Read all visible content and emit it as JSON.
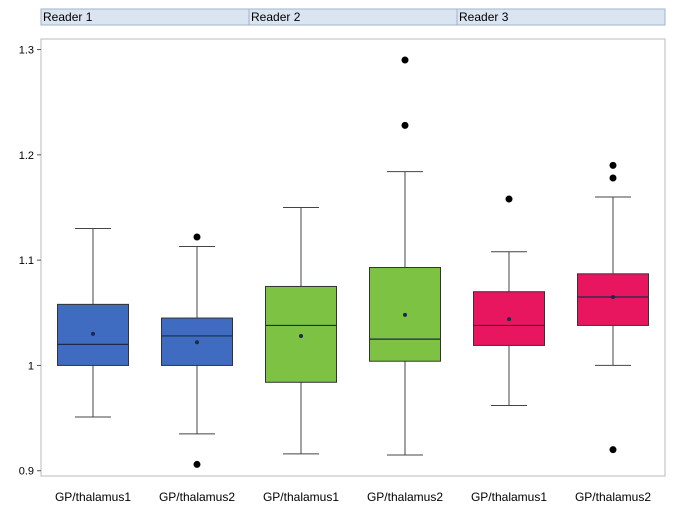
{
  "chart_data": {
    "type": "box",
    "panels": [
      {
        "label": "Reader 1",
        "color": "#3F6CC0",
        "boxes": [
          {
            "category": "GP/thalamus1",
            "whisker_low": 0.951,
            "q1": 1.0,
            "median": 1.02,
            "q3": 1.058,
            "whisker_high": 1.13,
            "mean": 1.03,
            "outliers": []
          },
          {
            "category": "GP/thalamus2",
            "whisker_low": 0.935,
            "q1": 1.0,
            "median": 1.028,
            "q3": 1.045,
            "whisker_high": 1.113,
            "mean": 1.022,
            "outliers": [
              1.122,
              0.906
            ]
          }
        ]
      },
      {
        "label": "Reader 2",
        "color": "#7DC242",
        "boxes": [
          {
            "category": "GP/thalamus1",
            "whisker_low": 0.916,
            "q1": 0.984,
            "median": 1.038,
            "q3": 1.075,
            "whisker_high": 1.15,
            "mean": 1.028,
            "outliers": []
          },
          {
            "category": "GP/thalamus2",
            "whisker_low": 0.915,
            "q1": 1.004,
            "median": 1.025,
            "q3": 1.093,
            "whisker_high": 1.184,
            "mean": 1.048,
            "outliers": [
              1.29,
              1.228
            ]
          }
        ]
      },
      {
        "label": "Reader 3",
        "color": "#E8155F",
        "boxes": [
          {
            "category": "GP/thalamus1",
            "whisker_low": 0.962,
            "q1": 1.019,
            "median": 1.038,
            "q3": 1.07,
            "whisker_high": 1.108,
            "mean": 1.044,
            "outliers": [
              1.158
            ]
          },
          {
            "category": "GP/thalamus2",
            "whisker_low": 1.0,
            "q1": 1.038,
            "median": 1.065,
            "q3": 1.087,
            "whisker_high": 1.16,
            "mean": 1.065,
            "outliers": [
              1.19,
              1.178,
              0.92
            ]
          }
        ]
      }
    ],
    "yticks": [
      "0.9",
      "1",
      "1.1",
      "1.2",
      "1.3"
    ],
    "ytick_values": [
      0.9,
      1.0,
      1.1,
      1.2,
      1.3
    ],
    "ylim": [
      0.895,
      1.31
    ],
    "title": "",
    "xlabel": "",
    "ylabel": "",
    "grid": false
  }
}
